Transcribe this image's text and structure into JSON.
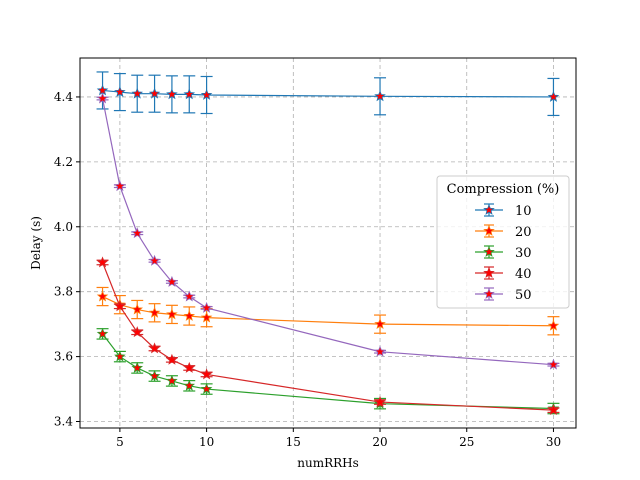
{
  "chart_data": {
    "type": "line",
    "xlabel": "numRRHs",
    "ylabel": "Delay (s)",
    "xlim": [
      2.7,
      31.3
    ],
    "ylim": [
      3.38,
      4.52
    ],
    "xticks": [
      5,
      10,
      15,
      20,
      25,
      30
    ],
    "yticks": [
      3.4,
      3.6,
      3.8,
      4.0,
      4.2,
      4.4
    ],
    "grid": true,
    "grid_style": "dashed",
    "marker": "star",
    "marker_color": "#ff0000",
    "legend": {
      "title": "Compression (%)",
      "placement": "center-right"
    },
    "x": [
      4,
      5,
      6,
      7,
      8,
      9,
      10,
      20,
      30
    ],
    "series": [
      {
        "name": "10",
        "color": "#1f77b4",
        "values": [
          4.42,
          4.415,
          4.41,
          4.41,
          4.408,
          4.408,
          4.406,
          4.402,
          4.4
        ],
        "errors": [
          0.057,
          0.057,
          0.057,
          0.057,
          0.057,
          0.057,
          0.057,
          0.057,
          0.057
        ]
      },
      {
        "name": "20",
        "color": "#ff7f0e",
        "values": [
          3.785,
          3.76,
          3.745,
          3.735,
          3.73,
          3.725,
          3.72,
          3.7,
          3.695
        ],
        "errors": [
          0.028,
          0.028,
          0.028,
          0.028,
          0.028,
          0.028,
          0.028,
          0.028,
          0.028
        ]
      },
      {
        "name": "30",
        "color": "#2ca02c",
        "values": [
          3.67,
          3.6,
          3.565,
          3.54,
          3.525,
          3.51,
          3.5,
          3.455,
          3.44
        ],
        "errors": [
          0.016,
          0.016,
          0.016,
          0.016,
          0.016,
          0.016,
          0.016,
          0.016,
          0.016
        ]
      },
      {
        "name": "40",
        "color": "#d62728",
        "values": [
          3.89,
          3.755,
          3.675,
          3.625,
          3.59,
          3.565,
          3.545,
          3.46,
          3.435
        ],
        "errors": [
          0.007,
          0.007,
          0.007,
          0.007,
          0.007,
          0.007,
          0.007,
          0.007,
          0.007
        ]
      },
      {
        "name": "50",
        "color": "#9467bd",
        "values": [
          4.395,
          4.125,
          3.98,
          3.895,
          3.83,
          3.785,
          3.75,
          3.615,
          3.575
        ],
        "errors": [
          0.004,
          0.004,
          0.004,
          0.004,
          0.004,
          0.004,
          0.004,
          0.004,
          0.004
        ]
      }
    ]
  }
}
